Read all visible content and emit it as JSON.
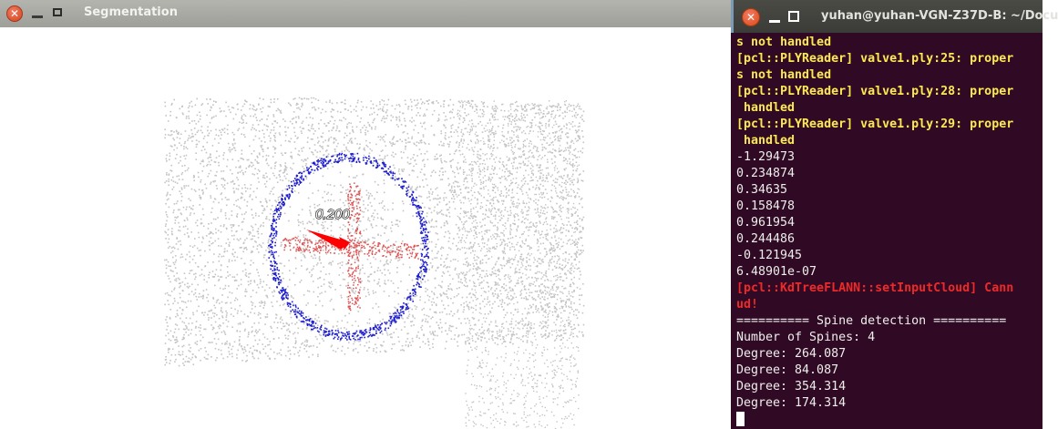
{
  "segmentation": {
    "title": "Segmentation",
    "dimension_label": "0.200"
  },
  "terminal": {
    "title": "yuhan@yuhan-VGN-Z37D-B: ~/Docu",
    "lines": [
      {
        "text": "s not handled",
        "color": "yellow"
      },
      {
        "text": "[pcl::PLYReader] valve1.ply:25: proper",
        "color": "yellow"
      },
      {
        "text": "s not handled",
        "color": "yellow"
      },
      {
        "text": "[pcl::PLYReader] valve1.ply:28: proper",
        "color": "yellow"
      },
      {
        "text": " handled",
        "color": "yellow"
      },
      {
        "text": "[pcl::PLYReader] valve1.ply:29: proper",
        "color": "yellow"
      },
      {
        "text": " handled",
        "color": "yellow"
      },
      {
        "text": "-1.29473",
        "color": "white"
      },
      {
        "text": "0.234874",
        "color": "white"
      },
      {
        "text": "0.34635",
        "color": "white"
      },
      {
        "text": "0.158478",
        "color": "white"
      },
      {
        "text": "0.961954",
        "color": "white"
      },
      {
        "text": "0.244486",
        "color": "white"
      },
      {
        "text": "-0.121945",
        "color": "white"
      },
      {
        "text": "6.48901e-07",
        "color": "white"
      },
      {
        "text": "[pcl::KdTreeFLANN::setInputCloud] Cann",
        "color": "red"
      },
      {
        "text": "ud!",
        "color": "red"
      },
      {
        "text": "========== Spine detection ==========",
        "color": "white"
      },
      {
        "text": "Number of Spines: 4",
        "color": "white"
      },
      {
        "text": "Degree: 264.087",
        "color": "white"
      },
      {
        "text": "Degree: 84.087",
        "color": "white"
      },
      {
        "text": "Degree: 354.314",
        "color": "white"
      },
      {
        "text": "Degree: 174.314",
        "color": "white"
      }
    ]
  },
  "colors": {
    "terminal_bg": "#300a24",
    "terminal_yellow": "#fce94f",
    "terminal_red": "#ef2929",
    "terminal_white": "#eeeeec",
    "cloud_gray": "#c4c4c4",
    "ring_blue": "#1c1ccf",
    "cross_red": "#e05050"
  },
  "icons": {
    "close": "close-icon",
    "minimize": "minimize-icon",
    "maximize": "maximize-icon"
  }
}
